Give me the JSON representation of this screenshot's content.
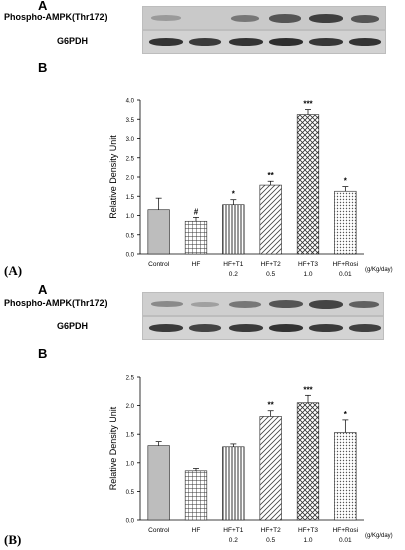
{
  "panels": [
    {
      "outer_label": "(A)",
      "letter_a": "A",
      "letter_b": "B",
      "blot_rows": [
        "Phospho-AMPK(Thr172)",
        "G6PDH"
      ],
      "unit_label": "(g/Kg/day)",
      "chart_data": {
        "type": "bar",
        "title": "",
        "ylabel": "Relative Density Unit",
        "xlabel": "",
        "ylim": [
          0,
          4.0
        ],
        "yticks": [
          "0.0",
          "0.5",
          "1.0",
          "1.5",
          "2.0",
          "2.5",
          "3.0",
          "3.5",
          "4.0"
        ],
        "categories": [
          "Control",
          "HF",
          "HF+T1",
          "HF+T2",
          "HF+T3",
          "HF+Rosi"
        ],
        "doses": [
          "",
          "",
          "0.2",
          "0.5",
          "1.0",
          "0.01"
        ],
        "values": [
          1.15,
          0.85,
          1.28,
          1.79,
          3.62,
          1.63
        ],
        "errors": [
          0.3,
          0.1,
          0.13,
          0.1,
          0.13,
          0.12
        ],
        "significance": [
          "",
          "#",
          "*",
          "**",
          "***",
          "*"
        ],
        "patterns": [
          "solid",
          "grid",
          "vlines",
          "diag",
          "cross",
          "dots"
        ],
        "grid": false,
        "legend": "none"
      }
    },
    {
      "outer_label": "(B)",
      "letter_a": "A",
      "letter_b": "B",
      "blot_rows": [
        "Phospho-AMPK(Thr172)",
        "G6PDH"
      ],
      "unit_label": "(g/Kg/day)",
      "chart_data": {
        "type": "bar",
        "title": "",
        "ylabel": "Relative Density Unit",
        "xlabel": "",
        "ylim": [
          0,
          2.5
        ],
        "yticks": [
          "0.0",
          "0.5",
          "1.0",
          "1.5",
          "2.0",
          "2.5"
        ],
        "categories": [
          "Control",
          "HF",
          "HF+T1",
          "HF+T2",
          "HF+T3",
          "HF+Rosi"
        ],
        "doses": [
          "",
          "",
          "0.2",
          "0.5",
          "1.0",
          "0.01"
        ],
        "values": [
          1.3,
          0.86,
          1.28,
          1.81,
          2.05,
          1.53
        ],
        "errors": [
          0.07,
          0.04,
          0.05,
          0.1,
          0.13,
          0.22
        ],
        "significance": [
          "",
          "",
          "",
          "**",
          "***",
          "*"
        ],
        "patterns": [
          "solid",
          "grid",
          "vlines",
          "diag",
          "cross",
          "dots"
        ],
        "grid": false,
        "legend": "none"
      }
    }
  ]
}
